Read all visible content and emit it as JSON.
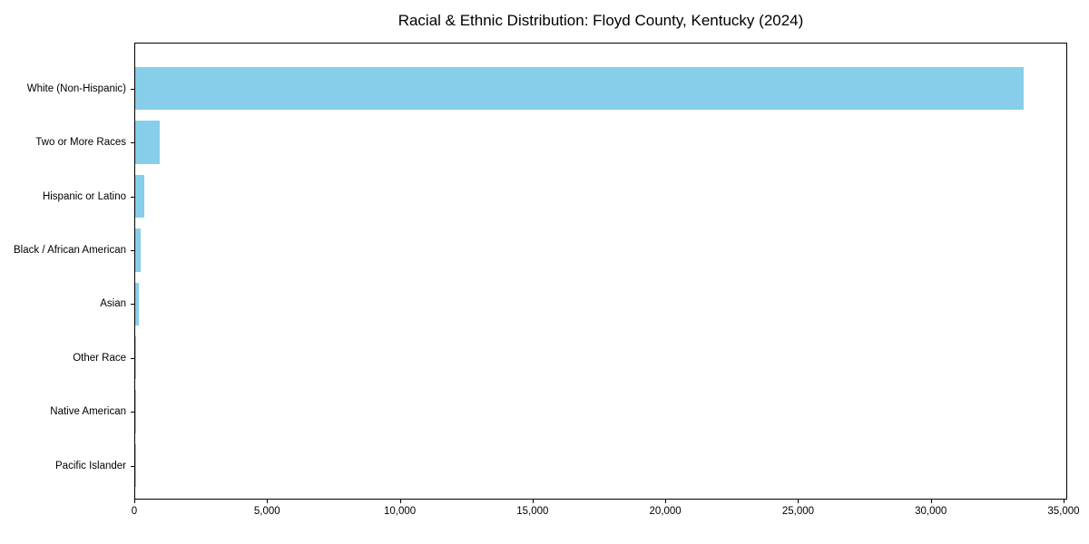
{
  "chart_data": {
    "type": "bar",
    "orientation": "horizontal",
    "title": "Racial & Ethnic Distribution: Floyd County, Kentucky (2024)",
    "categories": [
      "White (Non-Hispanic)",
      "Two or More Races",
      "Hispanic or Latino",
      "Black / African American",
      "Asian",
      "Other Race",
      "Native American",
      "Pacific Islander"
    ],
    "values": [
      33460,
      920,
      330,
      205,
      150,
      50,
      20,
      10
    ],
    "xlabel": "",
    "ylabel": "",
    "xlim": [
      0,
      35137
    ],
    "x_ticks": [
      0,
      5000,
      10000,
      15000,
      20000,
      25000,
      30000,
      35000
    ],
    "x_tick_labels": [
      "0",
      "5,000",
      "10,000",
      "15,000",
      "20,000",
      "25,000",
      "30,000",
      "35,000"
    ],
    "bar_color": "#87CEEB",
    "grid": "off",
    "legend": "none"
  }
}
